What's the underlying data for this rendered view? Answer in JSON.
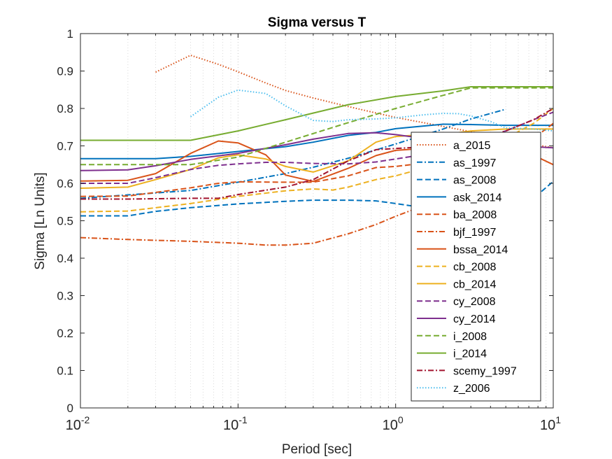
{
  "chart_data": {
    "type": "line",
    "title": "Sigma versus T",
    "xlabel": "Period [sec]",
    "ylabel": "Sigma [Ln Units]",
    "xscale": "log",
    "xlim": [
      0.01,
      10
    ],
    "ylim": [
      0,
      1
    ],
    "xticks": [
      {
        "value": 0.01,
        "base": "10",
        "exp": "-2"
      },
      {
        "value": 0.1,
        "base": "10",
        "exp": "-1"
      },
      {
        "value": 1,
        "base": "10",
        "exp": "0"
      },
      {
        "value": 10,
        "base": "10",
        "exp": "1"
      }
    ],
    "yticks": [
      "0",
      "0.1",
      "0.2",
      "0.3",
      "0.4",
      "0.5",
      "0.6",
      "0.7",
      "0.8",
      "0.9",
      "1"
    ],
    "grid": "x-minor-dotted",
    "legend_position": "right",
    "series": [
      {
        "name": "a_2015",
        "color": "#D95319",
        "dash": "dotted",
        "points": [
          [
            0.03,
            0.897
          ],
          [
            0.05,
            0.942
          ],
          [
            0.075,
            0.918
          ],
          [
            0.1,
            0.898
          ],
          [
            0.15,
            0.868
          ],
          [
            0.2,
            0.848
          ],
          [
            0.3,
            0.828
          ],
          [
            0.5,
            0.805
          ],
          [
            0.75,
            0.788
          ],
          [
            1,
            0.776
          ],
          [
            1.5,
            0.762
          ],
          [
            2,
            0.752
          ],
          [
            3,
            0.738
          ],
          [
            4,
            0.726
          ],
          [
            5,
            0.718
          ],
          [
            7.5,
            0.704
          ],
          [
            10,
            0.695
          ]
        ]
      },
      {
        "name": "as_1997",
        "color": "#0072BD",
        "dash": "dashdot",
        "points": [
          [
            0.01,
            0.56
          ],
          [
            0.05,
            0.581
          ],
          [
            0.1,
            0.603
          ],
          [
            0.2,
            0.626
          ],
          [
            0.3,
            0.643
          ],
          [
            0.5,
            0.667
          ],
          [
            1,
            0.705
          ],
          [
            2,
            0.745
          ],
          [
            3,
            0.772
          ],
          [
            5,
            0.798
          ]
        ]
      },
      {
        "name": "as_2008",
        "color": "#0072BD",
        "dash": "dashed",
        "points": [
          [
            0.01,
            0.513
          ],
          [
            0.02,
            0.513
          ],
          [
            0.03,
            0.525
          ],
          [
            0.05,
            0.535
          ],
          [
            0.1,
            0.545
          ],
          [
            0.2,
            0.552
          ],
          [
            0.3,
            0.555
          ],
          [
            0.5,
            0.555
          ],
          [
            0.75,
            0.553
          ],
          [
            1,
            0.546
          ],
          [
            1.5,
            0.535
          ],
          [
            2,
            0.52
          ],
          [
            3,
            0.508
          ],
          [
            5,
            0.52
          ],
          [
            7.5,
            0.56
          ],
          [
            10,
            0.605
          ]
        ]
      },
      {
        "name": "ask_2014",
        "color": "#0072BD",
        "dash": "solid",
        "points": [
          [
            0.01,
            0.666
          ],
          [
            0.03,
            0.666
          ],
          [
            0.05,
            0.672
          ],
          [
            0.1,
            0.685
          ],
          [
            0.2,
            0.698
          ],
          [
            0.3,
            0.71
          ],
          [
            0.5,
            0.728
          ],
          [
            0.75,
            0.736
          ],
          [
            1,
            0.746
          ],
          [
            2,
            0.758
          ],
          [
            3,
            0.757
          ],
          [
            5,
            0.755
          ],
          [
            10,
            0.755
          ]
        ]
      },
      {
        "name": "ba_2008",
        "color": "#D95319",
        "dash": "dashed",
        "points": [
          [
            0.01,
            0.565
          ],
          [
            0.02,
            0.566
          ],
          [
            0.05,
            0.588
          ],
          [
            0.075,
            0.6
          ],
          [
            0.1,
            0.604
          ],
          [
            0.2,
            0.603
          ],
          [
            0.3,
            0.603
          ],
          [
            0.5,
            0.62
          ],
          [
            0.75,
            0.642
          ],
          [
            1,
            0.645
          ],
          [
            2,
            0.66
          ],
          [
            3,
            0.672
          ],
          [
            5,
            0.69
          ],
          [
            7.5,
            0.72
          ],
          [
            10,
            0.76
          ]
        ]
      },
      {
        "name": "bjf_1997",
        "color": "#D95319",
        "dash": "dashdot",
        "points": [
          [
            0.01,
            0.455
          ],
          [
            0.02,
            0.45
          ],
          [
            0.05,
            0.445
          ],
          [
            0.1,
            0.44
          ],
          [
            0.15,
            0.435
          ],
          [
            0.2,
            0.435
          ],
          [
            0.3,
            0.44
          ],
          [
            0.5,
            0.465
          ],
          [
            0.75,
            0.49
          ],
          [
            1,
            0.512
          ],
          [
            1.5,
            0.54
          ],
          [
            2,
            0.56
          ]
        ]
      },
      {
        "name": "bssa_2014",
        "color": "#D95319",
        "dash": "solid",
        "points": [
          [
            0.01,
            0.606
          ],
          [
            0.02,
            0.608
          ],
          [
            0.03,
            0.626
          ],
          [
            0.05,
            0.68
          ],
          [
            0.075,
            0.713
          ],
          [
            0.1,
            0.708
          ],
          [
            0.15,
            0.676
          ],
          [
            0.2,
            0.622
          ],
          [
            0.3,
            0.605
          ],
          [
            0.5,
            0.64
          ],
          [
            0.75,
            0.674
          ],
          [
            1,
            0.688
          ],
          [
            1.5,
            0.693
          ],
          [
            2,
            0.7
          ],
          [
            3,
            0.703
          ],
          [
            5,
            0.7
          ],
          [
            7.5,
            0.675
          ],
          [
            10,
            0.65
          ]
        ]
      },
      {
        "name": "cb_2008",
        "color": "#EDB120",
        "dash": "dashed",
        "points": [
          [
            0.01,
            0.524
          ],
          [
            0.02,
            0.526
          ],
          [
            0.05,
            0.546
          ],
          [
            0.1,
            0.565
          ],
          [
            0.2,
            0.58
          ],
          [
            0.3,
            0.585
          ],
          [
            0.4,
            0.582
          ],
          [
            0.5,
            0.59
          ],
          [
            0.75,
            0.61
          ],
          [
            1,
            0.62
          ],
          [
            1.5,
            0.64
          ],
          [
            2,
            0.66
          ],
          [
            3,
            0.69
          ],
          [
            5,
            0.72
          ],
          [
            7.5,
            0.76
          ],
          [
            10,
            0.8
          ]
        ]
      },
      {
        "name": "cb_2014",
        "color": "#EDB120",
        "dash": "solid",
        "points": [
          [
            0.01,
            0.587
          ],
          [
            0.02,
            0.59
          ],
          [
            0.03,
            0.61
          ],
          [
            0.05,
            0.637
          ],
          [
            0.075,
            0.668
          ],
          [
            0.1,
            0.676
          ],
          [
            0.15,
            0.665
          ],
          [
            0.2,
            0.645
          ],
          [
            0.3,
            0.63
          ],
          [
            0.5,
            0.66
          ],
          [
            0.75,
            0.71
          ],
          [
            1,
            0.725
          ],
          [
            1.5,
            0.73
          ],
          [
            2,
            0.73
          ],
          [
            3,
            0.74
          ],
          [
            5,
            0.745
          ],
          [
            10,
            0.745
          ]
        ]
      },
      {
        "name": "cy_2008",
        "color": "#7E2F8E",
        "dash": "dashed",
        "points": [
          [
            0.01,
            0.6
          ],
          [
            0.02,
            0.6
          ],
          [
            0.03,
            0.615
          ],
          [
            0.05,
            0.637
          ],
          [
            0.075,
            0.648
          ],
          [
            0.1,
            0.652
          ],
          [
            0.15,
            0.656
          ],
          [
            0.2,
            0.656
          ],
          [
            0.3,
            0.653
          ],
          [
            0.5,
            0.652
          ],
          [
            0.75,
            0.657
          ],
          [
            1,
            0.665
          ],
          [
            2,
            0.685
          ],
          [
            3,
            0.71
          ],
          [
            5,
            0.74
          ],
          [
            7.5,
            0.77
          ],
          [
            10,
            0.79
          ]
        ]
      },
      {
        "name": "cy_2014",
        "color": "#7E2F8E",
        "dash": "solid",
        "points": [
          [
            0.01,
            0.634
          ],
          [
            0.02,
            0.636
          ],
          [
            0.03,
            0.647
          ],
          [
            0.05,
            0.664
          ],
          [
            0.1,
            0.68
          ],
          [
            0.2,
            0.703
          ],
          [
            0.3,
            0.718
          ],
          [
            0.5,
            0.733
          ],
          [
            0.75,
            0.735
          ],
          [
            1,
            0.73
          ],
          [
            1.5,
            0.72
          ],
          [
            2,
            0.716
          ],
          [
            3,
            0.71
          ],
          [
            5,
            0.702
          ],
          [
            10,
            0.695
          ]
        ]
      },
      {
        "name": "i_2008",
        "color": "#77AC30",
        "dash": "dashed",
        "points": [
          [
            0.01,
            0.65
          ],
          [
            0.05,
            0.65
          ],
          [
            0.1,
            0.67
          ],
          [
            0.2,
            0.71
          ],
          [
            0.5,
            0.762
          ],
          [
            1,
            0.8
          ],
          [
            2,
            0.835
          ],
          [
            3,
            0.855
          ],
          [
            5,
            0.855
          ],
          [
            10,
            0.855
          ]
        ]
      },
      {
        "name": "i_2014",
        "color": "#77AC30",
        "dash": "solid",
        "points": [
          [
            0.01,
            0.715
          ],
          [
            0.05,
            0.715
          ],
          [
            0.1,
            0.74
          ],
          [
            0.2,
            0.77
          ],
          [
            0.5,
            0.81
          ],
          [
            1,
            0.832
          ],
          [
            2,
            0.847
          ],
          [
            3,
            0.858
          ],
          [
            5,
            0.858
          ],
          [
            10,
            0.858
          ]
        ]
      },
      {
        "name": "scemy_1997",
        "color": "#A2142F",
        "dash": "dashdot",
        "points": [
          [
            0.01,
            0.558
          ],
          [
            0.02,
            0.558
          ],
          [
            0.05,
            0.56
          ],
          [
            0.075,
            0.56
          ],
          [
            0.1,
            0.57
          ],
          [
            0.2,
            0.59
          ],
          [
            0.3,
            0.61
          ],
          [
            0.5,
            0.66
          ],
          [
            0.75,
            0.69
          ],
          [
            1,
            0.693
          ],
          [
            2,
            0.7
          ],
          [
            3,
            0.71
          ],
          [
            5,
            0.74
          ],
          [
            7.5,
            0.77
          ],
          [
            10,
            0.8
          ]
        ]
      },
      {
        "name": "z_2006",
        "color": "#4DBEEE",
        "dash": "dotted",
        "points": [
          [
            0.05,
            0.778
          ],
          [
            0.075,
            0.83
          ],
          [
            0.1,
            0.849
          ],
          [
            0.15,
            0.84
          ],
          [
            0.2,
            0.807
          ],
          [
            0.3,
            0.768
          ],
          [
            0.4,
            0.765
          ],
          [
            0.5,
            0.77
          ],
          [
            0.75,
            0.772
          ],
          [
            1,
            0.775
          ],
          [
            1.5,
            0.783
          ],
          [
            2,
            0.787
          ],
          [
            2.5,
            0.786
          ],
          [
            3,
            0.78
          ],
          [
            4,
            0.765
          ],
          [
            5,
            0.748
          ],
          [
            7.5,
            0.745
          ],
          [
            10,
            0.74
          ]
        ]
      }
    ]
  }
}
